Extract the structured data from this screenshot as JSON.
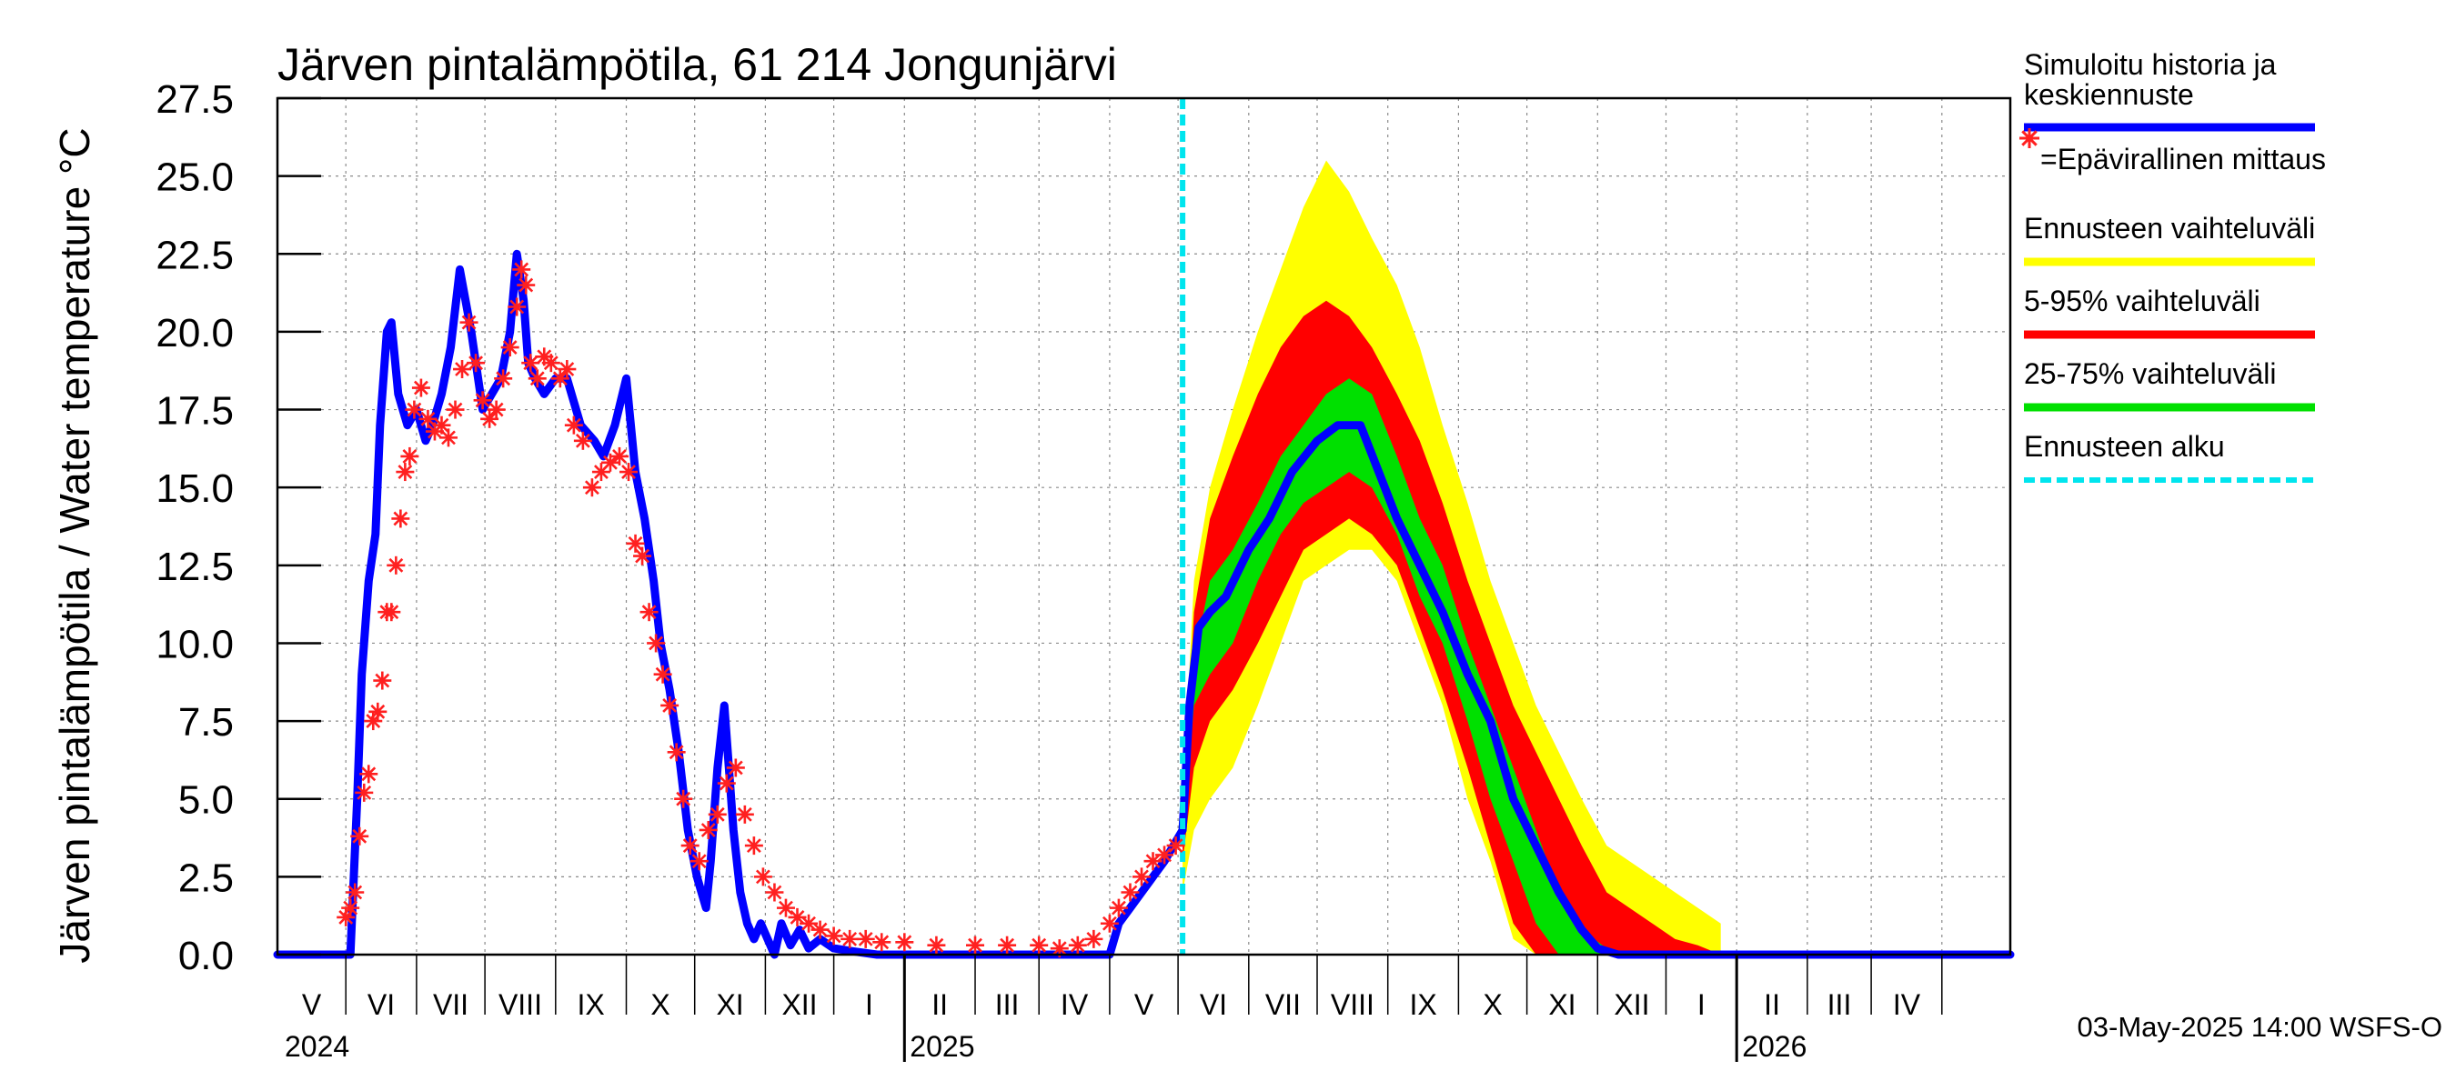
{
  "chart_data": {
    "type": "line",
    "title": "Järven pintalämpötila, 61 214 Jongunjärvi",
    "ylabel": "Järven pintalämpötila / Water temperature °C",
    "ylim": [
      0,
      27.5
    ],
    "xlim": [
      "2024-04-01",
      "2026-05-01"
    ],
    "y_ticks": [
      "0.0",
      "2.5",
      "5.0",
      "7.5",
      "10.0",
      "12.5",
      "15.0",
      "17.5",
      "20.0",
      "22.5",
      "25.0",
      "27.5"
    ],
    "months": [
      "V",
      "VI",
      "VII",
      "VIII",
      "IX",
      "X",
      "XI",
      "XII",
      "I",
      "II",
      "III",
      "IV",
      "V",
      "VI",
      "VII",
      "VIII",
      "IX",
      "X",
      "XI",
      "XII",
      "I",
      "II",
      "III",
      "IV"
    ],
    "years": [
      "2024",
      "2025",
      "2026"
    ],
    "grid": true,
    "forecast_start": "2025-05-03",
    "footer": "03-May-2025 14:00 WSFS-O",
    "colors": {
      "history": "#0000ff",
      "observation": "#ff2020",
      "forecast_range": "#ffff00",
      "p5_95": "#ff0000",
      "p25_75": "#00e000",
      "forecast_start": "#00e5ee"
    },
    "legend_placement": "right",
    "legend": [
      {
        "label": "Simuloitu historia ja keskiennuste",
        "color": "#0000ff",
        "style": "solid"
      },
      {
        "label": "=Epävirallinen mittaus",
        "color": "#ff2020",
        "style": "marker"
      },
      {
        "label": "Ennusteen vaihteluväli",
        "color": "#ffff00",
        "style": "solid"
      },
      {
        "label": "5-95% vaihteluväli",
        "color": "#ff0000",
        "style": "solid"
      },
      {
        "label": "25-75% vaihteluväli",
        "color": "#00e000",
        "style": "solid"
      },
      {
        "label": "Ennusteen alku",
        "color": "#00e5ee",
        "style": "dashed"
      }
    ],
    "series": [
      {
        "name": "Simuloitu historia ja keskiennuste",
        "x": [
          "2024-04-01",
          "2024-05-03",
          "2024-05-06",
          "2024-05-08",
          "2024-05-11",
          "2024-05-14",
          "2024-05-16",
          "2024-05-19",
          "2024-05-21",
          "2024-05-24",
          "2024-05-28",
          "2024-06-01",
          "2024-06-05",
          "2024-06-08",
          "2024-06-12",
          "2024-06-16",
          "2024-06-20",
          "2024-06-25",
          "2024-06-30",
          "2024-07-04",
          "2024-07-08",
          "2024-07-12",
          "2024-07-15",
          "2024-07-18",
          "2024-07-20",
          "2024-07-23",
          "2024-07-27",
          "2024-08-01",
          "2024-08-06",
          "2024-08-12",
          "2024-08-18",
          "2024-08-22",
          "2024-08-27",
          "2024-09-01",
          "2024-09-05",
          "2024-09-09",
          "2024-09-13",
          "2024-09-16",
          "2024-09-20",
          "2024-09-24",
          "2024-09-28",
          "2024-10-02",
          "2024-10-06",
          "2024-10-08",
          "2024-10-11",
          "2024-10-14",
          "2024-10-18",
          "2024-10-21",
          "2024-10-24",
          "2024-10-27",
          "2024-10-30",
          "2024-11-02",
          "2024-11-05",
          "2024-11-08",
          "2024-11-12",
          "2024-11-16",
          "2024-11-20",
          "2024-11-25",
          "2024-12-01",
          "2024-12-10",
          "2024-12-20",
          "2025-01-01",
          "2025-02-01",
          "2025-03-01",
          "2025-03-25",
          "2025-04-01",
          "2025-04-05",
          "2025-04-10",
          "2025-04-15",
          "2025-04-20",
          "2025-04-25",
          "2025-05-03",
          "2025-05-06",
          "2025-05-10",
          "2025-05-15",
          "2025-05-22",
          "2025-06-01",
          "2025-06-10",
          "2025-06-20",
          "2025-07-01",
          "2025-07-10",
          "2025-07-20",
          "2025-07-28",
          "2025-08-05",
          "2025-08-15",
          "2025-08-25",
          "2025-09-05",
          "2025-09-15",
          "2025-09-25",
          "2025-10-05",
          "2025-10-15",
          "2025-10-25",
          "2025-11-01",
          "2025-11-10",
          "2026-05-01"
        ],
        "y": [
          0,
          0,
          5,
          9,
          12,
          13.5,
          17,
          20,
          20.3,
          18,
          17,
          17.5,
          16.5,
          17,
          18,
          19.5,
          22,
          20,
          17.5,
          18,
          18.5,
          20,
          22.5,
          21,
          19,
          18.5,
          18,
          18.5,
          18.5,
          17,
          16.5,
          16,
          17,
          18.5,
          15.5,
          14,
          12,
          10,
          8.5,
          6.5,
          4,
          2.5,
          1.5,
          3,
          6,
          8,
          4,
          2,
          1,
          0.5,
          1,
          0.5,
          0,
          1,
          0.3,
          0.8,
          0.2,
          0.5,
          0.2,
          0.1,
          0,
          0,
          0,
          0,
          0,
          0,
          1,
          1.5,
          2,
          2.5,
          3,
          4,
          8,
          10.5,
          11,
          11.5,
          13,
          14,
          15.5,
          16.5,
          17,
          17,
          15.5,
          14,
          12.5,
          11,
          9,
          7.5,
          5,
          3.5,
          2,
          0.8,
          0.2,
          0,
          0
        ]
      },
      {
        "name": "=Epävirallinen mittaus",
        "x": [
          "2024-05-01",
          "2024-05-03",
          "2024-05-05",
          "2024-05-07",
          "2024-05-09",
          "2024-05-11",
          "2024-05-13",
          "2024-05-15",
          "2024-05-17",
          "2024-05-19",
          "2024-05-21",
          "2024-05-23",
          "2024-05-25",
          "2024-05-27",
          "2024-05-29",
          "2024-05-31",
          "2024-06-03",
          "2024-06-06",
          "2024-06-09",
          "2024-06-12",
          "2024-06-15",
          "2024-06-18",
          "2024-06-21",
          "2024-06-24",
          "2024-06-27",
          "2024-06-30",
          "2024-07-03",
          "2024-07-06",
          "2024-07-09",
          "2024-07-12",
          "2024-07-15",
          "2024-07-17",
          "2024-07-19",
          "2024-07-21",
          "2024-07-24",
          "2024-07-27",
          "2024-07-30",
          "2024-08-03",
          "2024-08-06",
          "2024-08-09",
          "2024-08-13",
          "2024-08-17",
          "2024-08-21",
          "2024-08-25",
          "2024-08-29",
          "2024-09-02",
          "2024-09-05",
          "2024-09-08",
          "2024-09-11",
          "2024-09-14",
          "2024-09-17",
          "2024-09-20",
          "2024-09-23",
          "2024-09-26",
          "2024-09-29",
          "2024-10-03",
          "2024-10-07",
          "2024-10-11",
          "2024-10-15",
          "2024-10-19",
          "2024-10-23",
          "2024-10-27",
          "2024-10-31",
          "2024-11-05",
          "2024-11-10",
          "2024-11-15",
          "2024-11-20",
          "2024-11-25",
          "2024-12-01",
          "2024-12-08",
          "2024-12-15",
          "2024-12-22",
          "2025-01-01",
          "2025-01-15",
          "2025-02-01",
          "2025-02-15",
          "2025-03-01",
          "2025-03-10",
          "2025-03-18",
          "2025-03-25",
          "2025-04-01",
          "2025-04-05",
          "2025-04-10",
          "2025-04-15",
          "2025-04-20",
          "2025-04-25",
          "2025-04-30"
        ],
        "y": [
          1.2,
          1.5,
          2,
          3.8,
          5.2,
          5.8,
          7.5,
          7.8,
          8.8,
          11,
          11,
          12.5,
          14,
          15.5,
          16,
          17.5,
          18.2,
          17.2,
          16.8,
          17,
          16.6,
          17.5,
          18.8,
          20.3,
          19,
          17.8,
          17.2,
          17.5,
          18.5,
          19.5,
          20.8,
          22,
          21.5,
          19,
          18.5,
          19.2,
          19,
          18.5,
          18.8,
          17,
          16.5,
          15,
          15.5,
          15.8,
          16,
          15.5,
          13.2,
          12.8,
          11,
          10,
          9,
          8,
          6.5,
          5,
          3.5,
          3,
          4,
          4.5,
          5.5,
          6,
          4.5,
          3.5,
          2.5,
          2,
          1.5,
          1.2,
          1,
          0.8,
          0.6,
          0.5,
          0.5,
          0.4,
          0.4,
          0.3,
          0.3,
          0.3,
          0.3,
          0.2,
          0.3,
          0.5,
          1,
          1.5,
          2,
          2.5,
          3,
          3.2,
          3.5
        ]
      }
    ],
    "bands": [
      {
        "name": "Ennusteen vaihteluväli",
        "x": [
          "2025-05-03",
          "2025-05-08",
          "2025-05-15",
          "2025-05-25",
          "2025-06-05",
          "2025-06-15",
          "2025-06-25",
          "2025-07-05",
          "2025-07-15",
          "2025-07-25",
          "2025-08-05",
          "2025-08-15",
          "2025-08-25",
          "2025-09-05",
          "2025-09-15",
          "2025-09-25",
          "2025-10-05",
          "2025-10-15",
          "2025-10-25",
          "2025-11-05",
          "2025-11-15",
          "2025-11-25",
          "2025-12-05",
          "2025-12-15",
          "2025-12-25"
        ],
        "low": [
          2,
          4,
          5,
          6,
          8,
          10,
          12,
          12.5,
          13,
          13,
          12,
          10,
          8,
          5,
          3,
          0.5,
          0,
          0,
          0,
          0,
          0,
          0,
          0,
          0,
          0
        ],
        "high": [
          5,
          12,
          15,
          17.5,
          20,
          22,
          24,
          25.5,
          24.5,
          23,
          21.5,
          19.5,
          17,
          14.5,
          12,
          10,
          8,
          6.5,
          5,
          3.5,
          3,
          2.5,
          2,
          1.5,
          1
        ]
      },
      {
        "name": "5-95% vaihteluväli",
        "x": [
          "2025-05-03",
          "2025-05-08",
          "2025-05-15",
          "2025-05-25",
          "2025-06-05",
          "2025-06-15",
          "2025-06-25",
          "2025-07-05",
          "2025-07-15",
          "2025-07-25",
          "2025-08-05",
          "2025-08-15",
          "2025-08-25",
          "2025-09-05",
          "2025-09-15",
          "2025-09-25",
          "2025-10-05",
          "2025-10-15",
          "2025-10-25",
          "2025-11-05",
          "2025-11-15",
          "2025-11-25",
          "2025-12-05",
          "2025-12-15",
          "2025-12-25"
        ],
        "low": [
          3,
          6,
          7.5,
          8.5,
          10,
          11.5,
          13,
          13.5,
          14,
          13.5,
          12.5,
          10.5,
          8.5,
          6,
          3.5,
          1,
          0,
          0,
          0,
          0,
          0,
          0,
          0,
          0,
          0
        ],
        "high": [
          4,
          11,
          14,
          16,
          18,
          19.5,
          20.5,
          21,
          20.5,
          19.5,
          18,
          16.5,
          14.5,
          12,
          10,
          8,
          6.5,
          5,
          3.5,
          2,
          1.5,
          1,
          0.5,
          0.3,
          0
        ]
      },
      {
        "name": "25-75% vaihteluväli",
        "x": [
          "2025-05-03",
          "2025-05-08",
          "2025-05-15",
          "2025-05-25",
          "2025-06-05",
          "2025-06-15",
          "2025-06-25",
          "2025-07-05",
          "2025-07-15",
          "2025-07-25",
          "2025-08-05",
          "2025-08-15",
          "2025-08-25",
          "2025-09-05",
          "2025-09-15",
          "2025-09-25",
          "2025-10-05",
          "2025-10-15",
          "2025-10-25",
          "2025-11-05",
          "2025-11-15"
        ],
        "low": [
          3.5,
          8,
          9,
          10,
          12,
          13.5,
          14.5,
          15,
          15.5,
          15,
          13.5,
          11.5,
          10,
          7.5,
          5,
          3,
          1,
          0,
          0,
          0,
          0
        ],
        "high": [
          4,
          9.5,
          12,
          13,
          14.5,
          16,
          17,
          18,
          18.5,
          18,
          16,
          14,
          12.5,
          10,
          8,
          6,
          4,
          2,
          0.8,
          0.2,
          0
        ]
      }
    ]
  }
}
